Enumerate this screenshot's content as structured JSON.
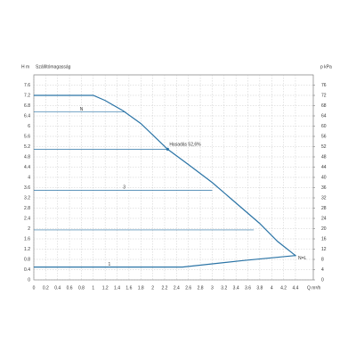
{
  "chart_data": {
    "type": "line",
    "y_label": "H m",
    "y2_label": "p kPa",
    "x_label": "Q m³/h",
    "subtitle": "Szállítómagasság",
    "xlim": [
      0,
      4.7
    ],
    "ylim": [
      0,
      8
    ],
    "y2lim": [
      0,
      80
    ],
    "xticks": [
      0,
      0.2,
      0.4,
      0.6,
      0.8,
      1,
      1.2,
      1.4,
      1.6,
      1.8,
      2,
      2.2,
      2.4,
      2.6,
      2.8,
      3,
      3.2,
      3.4,
      3.6,
      3.8,
      4,
      4.2,
      4.4
    ],
    "yticks": [
      0,
      0.4,
      0.8,
      1.2,
      1.6,
      2,
      2.4,
      2.8,
      3.2,
      3.6,
      4,
      4.4,
      4.8,
      5.2,
      5.6,
      6,
      6.4,
      6.8,
      7.2,
      7.6
    ],
    "y2ticks": [
      0,
      4,
      8,
      12,
      16,
      20,
      24,
      28,
      32,
      36,
      40,
      44,
      48,
      52,
      56,
      60,
      64,
      68,
      72,
      76
    ],
    "grid": true,
    "color": "#2b74a6",
    "series": [
      {
        "x": [
          0,
          1.0,
          1.2,
          1.5,
          1.8,
          2.25,
          2.6,
          3.0,
          3.4,
          3.8,
          4.1,
          4.4
        ],
        "values": [
          7.2,
          7.2,
          7.0,
          6.6,
          6.1,
          5.1,
          4.5,
          3.8,
          3.0,
          2.2,
          1.5,
          0.95
        ]
      },
      {
        "x": [
          0,
          2.5,
          3.5,
          4.4
        ],
        "values": [
          0.5,
          0.5,
          0.75,
          0.95
        ]
      },
      {
        "name": "N",
        "x": [
          0,
          1.55
        ],
        "values": [
          6.55,
          6.55
        ]
      },
      {
        "x": [
          0,
          2.25
        ],
        "values": [
          5.1,
          5.1
        ]
      },
      {
        "name": "3",
        "x": [
          0,
          3.0
        ],
        "values": [
          3.5,
          3.5
        ]
      },
      {
        "x": [
          0,
          3.7
        ],
        "values": [
          1.95,
          1.95
        ]
      },
      {
        "name": "1",
        "x": [
          0,
          2.5
        ],
        "values": [
          0.5,
          0.5
        ]
      }
    ],
    "setpoint": {
      "label": "Hasadás 52,6%",
      "x": 2.25,
      "y": 5.1
    },
    "end_label": {
      "label": "N=L",
      "x": 4.4,
      "y": 0.95
    }
  }
}
